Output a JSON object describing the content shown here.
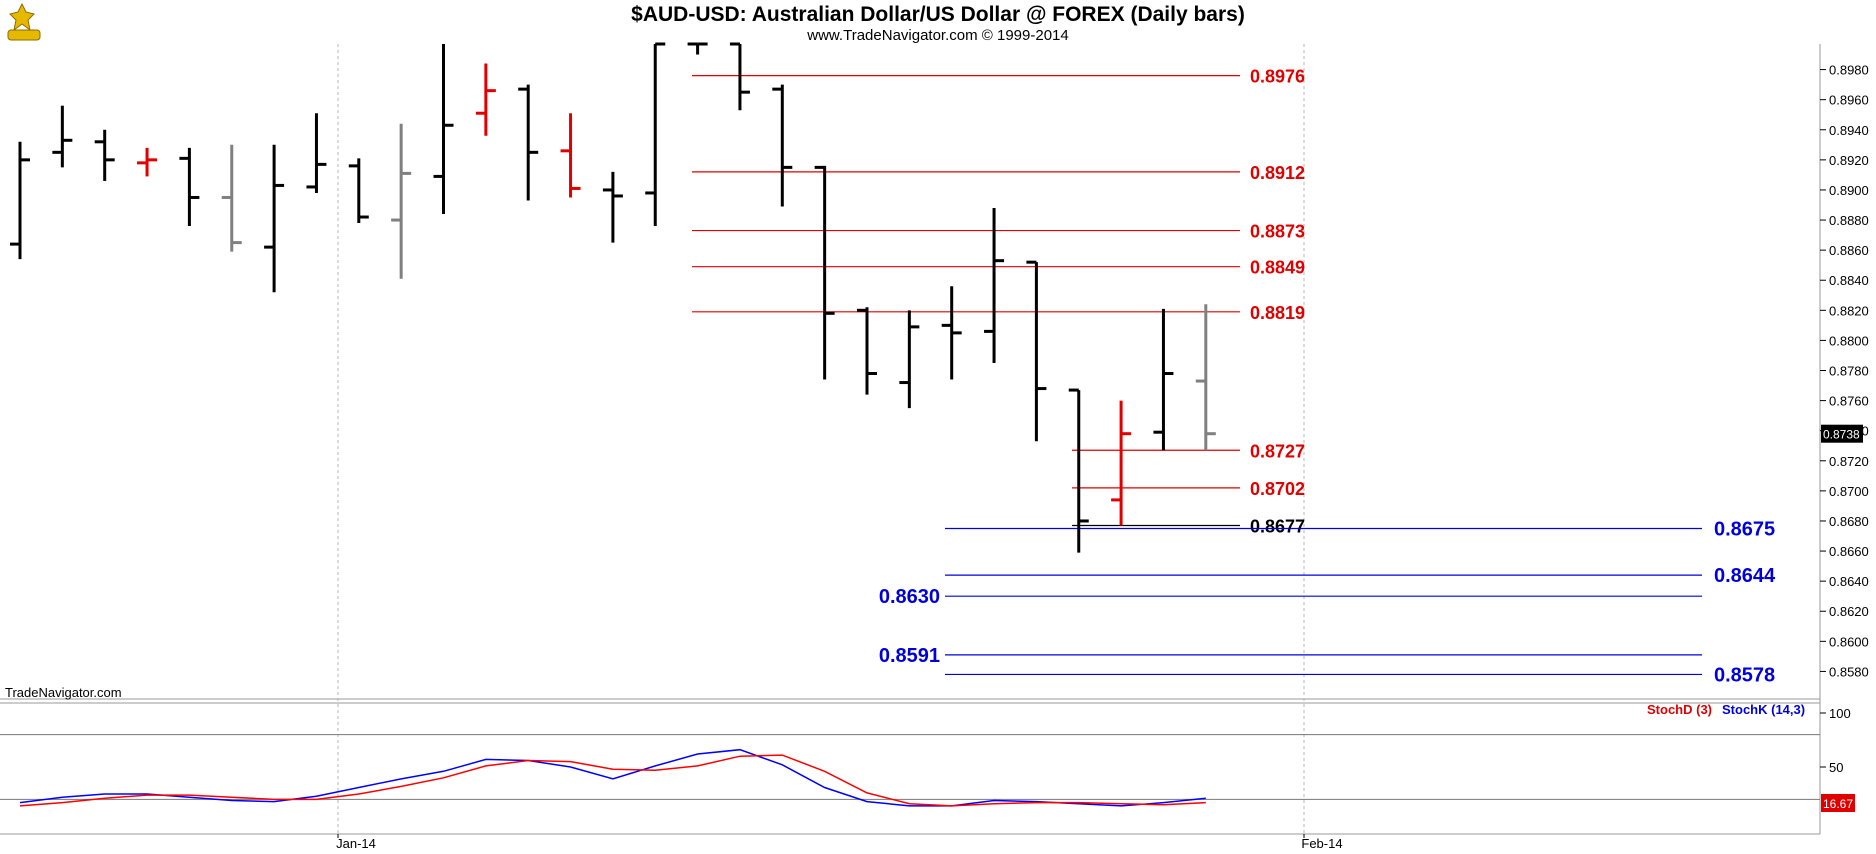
{
  "header": {
    "title": "$AUD-USD:  Australian Dollar/US Dollar @ FOREX  (Daily bars)",
    "subtitle": "www.TradeNavigator.com © 1999-2014"
  },
  "watermark": "TradeNavigator.com",
  "colors": {
    "up_bar": "#000000",
    "down_bar": "#e00000",
    "neutral_bar": "#808080",
    "resistance": "#e00000",
    "support": "#0000dd",
    "stoch_k": "#0000ff",
    "stoch_d": "#ff0000"
  },
  "chart_data": [
    {
      "type": "ohlc",
      "title": "$AUD-USD:  Australian Dollar/US Dollar @ FOREX  (Daily bars)",
      "ylim": [
        0.8565,
        0.8997
      ],
      "y_ticks": [
        "0.8980",
        "0.8960",
        "0.8940",
        "0.8920",
        "0.8900",
        "0.8880",
        "0.8860",
        "0.8840",
        "0.8820",
        "0.8800",
        "0.8780",
        "0.8760",
        "0.8740",
        "0.8720",
        "0.8700",
        "0.8680",
        "0.8660",
        "0.8640",
        "0.8620",
        "0.8600",
        "0.8580"
      ],
      "x_ticks": [
        "Jan-14",
        "Feb-14"
      ],
      "last_price": "0.8738",
      "bars": [
        {
          "o": 0.8864,
          "h": 0.8932,
          "l": 0.8854,
          "c": 0.892,
          "color": "black"
        },
        {
          "o": 0.8925,
          "h": 0.8956,
          "l": 0.8915,
          "c": 0.8933,
          "color": "black"
        },
        {
          "o": 0.8932,
          "h": 0.894,
          "l": 0.8906,
          "c": 0.892,
          "color": "black"
        },
        {
          "o": 0.8918,
          "h": 0.8928,
          "l": 0.8909,
          "c": 0.892,
          "color": "red"
        },
        {
          "o": 0.8921,
          "h": 0.8928,
          "l": 0.8876,
          "c": 0.8895,
          "color": "black"
        },
        {
          "o": 0.8895,
          "h": 0.893,
          "l": 0.8859,
          "c": 0.8865,
          "color": "gray"
        },
        {
          "o": 0.8862,
          "h": 0.893,
          "l": 0.8832,
          "c": 0.8903,
          "color": "black"
        },
        {
          "o": 0.8902,
          "h": 0.8951,
          "l": 0.8898,
          "c": 0.8917,
          "color": "black"
        },
        {
          "o": 0.8916,
          "h": 0.8921,
          "l": 0.8878,
          "c": 0.8882,
          "color": "black"
        },
        {
          "o": 0.888,
          "h": 0.8944,
          "l": 0.8841,
          "c": 0.8911,
          "color": "gray"
        },
        {
          "o": 0.8909,
          "h": 0.8997,
          "l": 0.8884,
          "c": 0.8943,
          "color": "black"
        },
        {
          "o": 0.8951,
          "h": 0.8984,
          "l": 0.8936,
          "c": 0.8966,
          "color": "red"
        },
        {
          "o": 0.8967,
          "h": 0.897,
          "l": 0.8893,
          "c": 0.8925,
          "color": "black"
        },
        {
          "o": 0.8926,
          "h": 0.8951,
          "l": 0.8895,
          "c": 0.8901,
          "color": "red"
        },
        {
          "o": 0.89,
          "h": 0.8912,
          "l": 0.8865,
          "c": 0.8896,
          "color": "black"
        },
        {
          "o": 0.8898,
          "h": 0.8997,
          "l": 0.8876,
          "c": 0.8997,
          "color": "black"
        },
        {
          "o": 0.8997,
          "h": 0.8997,
          "l": 0.899,
          "c": 0.8997,
          "color": "black"
        },
        {
          "o": 0.8997,
          "h": 0.8997,
          "l": 0.8953,
          "c": 0.8965,
          "color": "black"
        },
        {
          "o": 0.8967,
          "h": 0.897,
          "l": 0.8889,
          "c": 0.8915,
          "color": "black"
        },
        {
          "o": 0.8915,
          "h": 0.8916,
          "l": 0.8774,
          "c": 0.8818,
          "color": "black"
        },
        {
          "o": 0.882,
          "h": 0.8822,
          "l": 0.8764,
          "c": 0.8778,
          "color": "black"
        },
        {
          "o": 0.8772,
          "h": 0.882,
          "l": 0.8755,
          "c": 0.8809,
          "color": "black"
        },
        {
          "o": 0.881,
          "h": 0.8836,
          "l": 0.8774,
          "c": 0.8805,
          "color": "black"
        },
        {
          "o": 0.8806,
          "h": 0.8888,
          "l": 0.8785,
          "c": 0.8853,
          "color": "black"
        },
        {
          "o": 0.8852,
          "h": 0.8852,
          "l": 0.8733,
          "c": 0.8768,
          "color": "black"
        },
        {
          "o": 0.8767,
          "h": 0.8767,
          "l": 0.8659,
          "c": 0.868,
          "color": "black"
        },
        {
          "o": 0.8694,
          "h": 0.876,
          "l": 0.8677,
          "c": 0.8738,
          "color": "red"
        },
        {
          "o": 0.8739,
          "h": 0.8821,
          "l": 0.8727,
          "c": 0.8778,
          "color": "black"
        },
        {
          "o": 0.8773,
          "h": 0.8824,
          "l": 0.8727,
          "c": 0.8738,
          "color": "gray"
        }
      ],
      "levels": [
        {
          "label": "0.8976",
          "value": 0.8976,
          "color": "red",
          "extent": "short"
        },
        {
          "label": "0.8912",
          "value": 0.8912,
          "color": "red",
          "extent": "short"
        },
        {
          "label": "0.8873",
          "value": 0.8873,
          "color": "red",
          "extent": "short"
        },
        {
          "label": "0.8849",
          "value": 0.8849,
          "color": "red",
          "extent": "short"
        },
        {
          "label": "0.8819",
          "value": 0.8819,
          "color": "red",
          "extent": "short"
        },
        {
          "label": "0.8727",
          "value": 0.8727,
          "color": "red",
          "extent": "late"
        },
        {
          "label": "0.8702",
          "value": 0.8702,
          "color": "red",
          "extent": "late"
        },
        {
          "label": "0.8677",
          "value": 0.8677,
          "color": "black",
          "extent": "late"
        },
        {
          "label": "0.8675",
          "value": 0.8675,
          "color": "blue",
          "extent": "long",
          "label_side": "right"
        },
        {
          "label": "0.8644",
          "value": 0.8644,
          "color": "blue",
          "extent": "long",
          "label_side": "right"
        },
        {
          "label": "0.8630",
          "value": 0.863,
          "color": "blue",
          "extent": "long",
          "label_side": "left"
        },
        {
          "label": "0.8591",
          "value": 0.8591,
          "color": "blue",
          "extent": "long",
          "label_side": "left"
        },
        {
          "label": "0.8578",
          "value": 0.8578,
          "color": "blue",
          "extent": "long",
          "label_side": "right"
        }
      ]
    },
    {
      "type": "line",
      "title": "",
      "ylim": [
        0,
        100
      ],
      "y_ticks": [
        "100",
        "50"
      ],
      "reference_lines": [
        80,
        20
      ],
      "legend": [
        {
          "name": "StochD (3)",
          "color": "red"
        },
        {
          "name": "StochK (14,3)",
          "color": "blue"
        }
      ],
      "last_value": "16.67",
      "series": [
        {
          "name": "StochK (14,3)",
          "color": "blue",
          "values": [
            17,
            22,
            25,
            25,
            22,
            19,
            18,
            23,
            31,
            39,
            46,
            57,
            56,
            50,
            39,
            51,
            62,
            66,
            52,
            31,
            18,
            14,
            14,
            19,
            18,
            16,
            14,
            17,
            21
          ]
        },
        {
          "name": "StochD (3)",
          "color": "red",
          "values": [
            14,
            17,
            21,
            24,
            24,
            22,
            20,
            20,
            25,
            32,
            40,
            51,
            56,
            55,
            48,
            47,
            51,
            60,
            61,
            46,
            26,
            16,
            14,
            16,
            17,
            17,
            16,
            15,
            17
          ]
        }
      ]
    }
  ]
}
